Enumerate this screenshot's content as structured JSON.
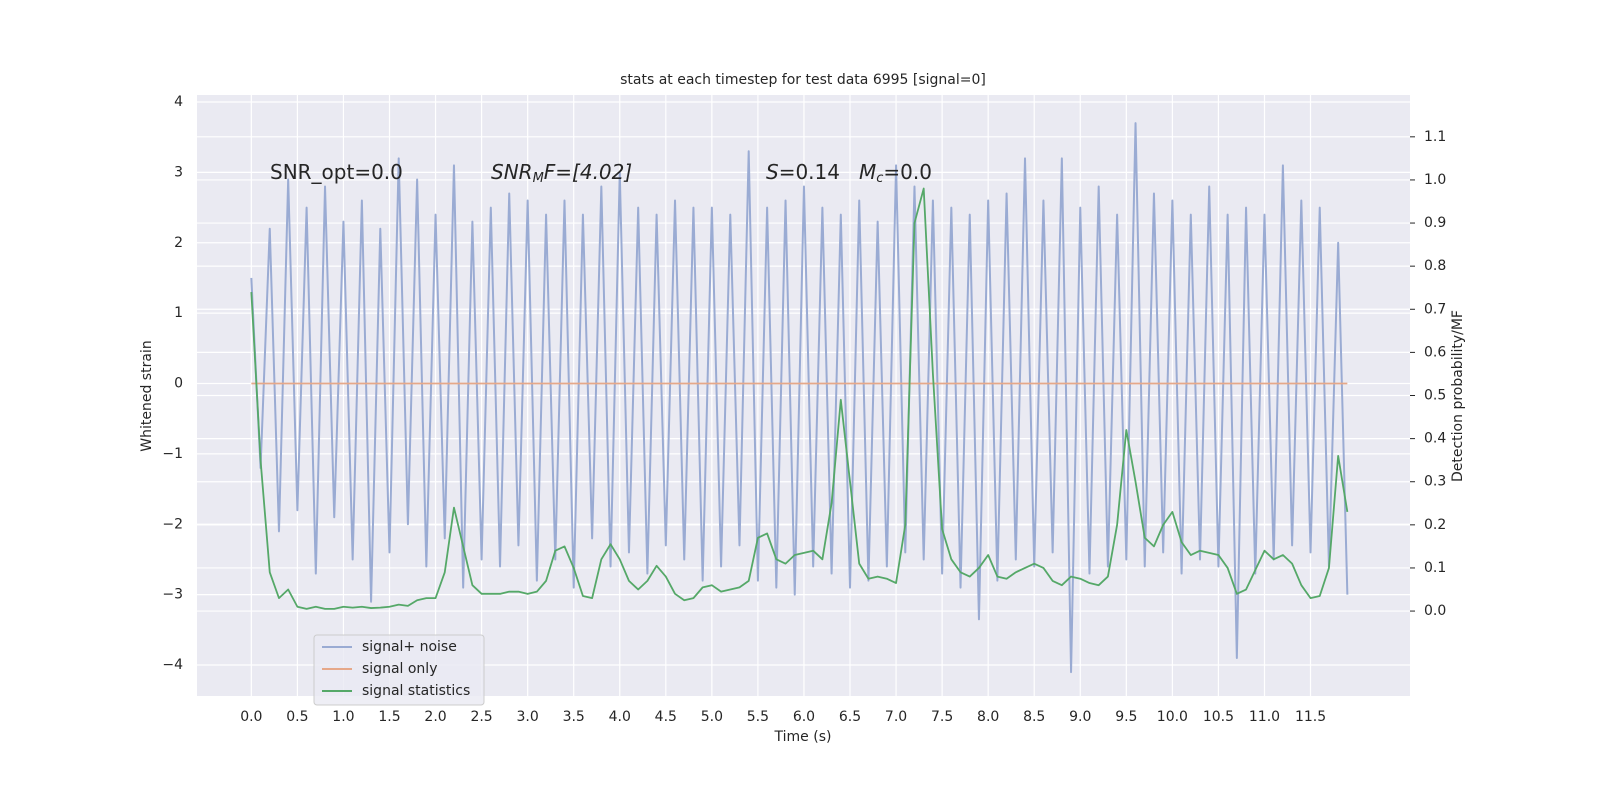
{
  "chart_data": {
    "type": "line",
    "title": "stats at each timestep for test data 6995 [signal=0]",
    "xlabel": "Time (s)",
    "ylabel": "Whitened strain",
    "y2label": "Detection probability/MF",
    "annotations": [
      [
        "SNR_opt=0.0"
      ],
      [
        "SNR",
        "M",
        "F=[4.02]"
      ],
      [
        "S",
        "=0.14"
      ],
      [
        "M",
        "c",
        "=0.0"
      ]
    ],
    "x": [
      0,
      0.1,
      0.2,
      0.3,
      0.4,
      0.5,
      0.6,
      0.7,
      0.8,
      0.9,
      1,
      1.1,
      1.2,
      1.3,
      1.4,
      1.5,
      1.6,
      1.7,
      1.8,
      1.9,
      2,
      2.1,
      2.2,
      2.3,
      2.4,
      2.5,
      2.6,
      2.7,
      2.8,
      2.9,
      3,
      3.1,
      3.2,
      3.3,
      3.4,
      3.5,
      3.6,
      3.7,
      3.8,
      3.9,
      4,
      4.1,
      4.2,
      4.3,
      4.4,
      4.5,
      4.6,
      4.7,
      4.8,
      4.9,
      5,
      5.1,
      5.2,
      5.3,
      5.4,
      5.5,
      5.6,
      5.7,
      5.8,
      5.9,
      6,
      6.1,
      6.2,
      6.3,
      6.4,
      6.5,
      6.6,
      6.7,
      6.8,
      6.9,
      7,
      7.1,
      7.2,
      7.3,
      7.4,
      7.5,
      7.6,
      7.7,
      7.8,
      7.9,
      8,
      8.1,
      8.2,
      8.3,
      8.4,
      8.5,
      8.6,
      8.7,
      8.8,
      8.9,
      9,
      9.1,
      9.2,
      9.3,
      9.4,
      9.5,
      9.6,
      9.7,
      9.8,
      9.9,
      10,
      10.1,
      10.2,
      10.3,
      10.4,
      10.5,
      10.6,
      10.7,
      10.8,
      10.9,
      11,
      11.1,
      11.2,
      11.3,
      11.4,
      11.5,
      11.6,
      11.7,
      11.8,
      11.9
    ],
    "series": [
      {
        "name": "signal+ noise",
        "color": "#9aabd3",
        "values": [
          1.5,
          -1.2,
          2.2,
          -2.1,
          2.9,
          -1.8,
          2.5,
          -2.7,
          2.8,
          -1.9,
          2.3,
          -2.5,
          2.6,
          -3.1,
          2.2,
          -2.4,
          3.2,
          -2.0,
          2.9,
          -2.6,
          2.4,
          -2.2,
          3.1,
          -2.9,
          2.3,
          -2.5,
          2.5,
          -2.6,
          2.7,
          -2.3,
          2.6,
          -2.8,
          2.4,
          -2.5,
          2.6,
          -2.9,
          2.4,
          -2.2,
          2.8,
          -2.6,
          3.0,
          -2.4,
          2.5,
          -2.7,
          2.4,
          -2.3,
          2.6,
          -2.5,
          2.5,
          -2.8,
          2.5,
          -2.6,
          2.4,
          -2.3,
          3.3,
          -2.8,
          2.5,
          -2.9,
          2.6,
          -3.0,
          2.8,
          -2.6,
          2.5,
          -2.7,
          2.4,
          -2.9,
          2.6,
          -2.8,
          2.3,
          -2.6,
          3.1,
          -2.4,
          2.8,
          -2.5,
          2.6,
          -2.7,
          2.5,
          -2.9,
          2.4,
          -3.35,
          2.6,
          -2.8,
          2.7,
          -2.5,
          3.2,
          -2.6,
          2.6,
          -2.4,
          3.2,
          -4.1,
          2.5,
          -2.7,
          2.8,
          -2.6,
          2.4,
          -2.5,
          3.7,
          -2.6,
          2.7,
          -2.4,
          2.6,
          -2.7,
          2.4,
          -2.5,
          2.8,
          -2.6,
          2.4,
          -3.9,
          2.5,
          -2.7,
          2.4,
          -2.5,
          3.1,
          -2.3,
          2.6,
          -2.4,
          2.5,
          -2.6,
          2.0,
          -3.0
        ]
      },
      {
        "name": "signal only",
        "color": "#e6a889",
        "values": [
          0,
          0,
          0,
          0,
          0,
          0,
          0,
          0,
          0,
          0,
          0,
          0,
          0,
          0,
          0,
          0,
          0,
          0,
          0,
          0,
          0,
          0,
          0,
          0,
          0,
          0,
          0,
          0,
          0,
          0,
          0,
          0,
          0,
          0,
          0,
          0,
          0,
          0,
          0,
          0,
          0,
          0,
          0,
          0,
          0,
          0,
          0,
          0,
          0,
          0,
          0,
          0,
          0,
          0,
          0,
          0,
          0,
          0,
          0,
          0,
          0,
          0,
          0,
          0,
          0,
          0,
          0,
          0,
          0,
          0,
          0,
          0,
          0,
          0,
          0,
          0,
          0,
          0,
          0,
          0,
          0,
          0,
          0,
          0,
          0,
          0,
          0,
          0,
          0,
          0,
          0,
          0,
          0,
          0,
          0,
          0,
          0,
          0,
          0,
          0,
          0,
          0,
          0,
          0,
          0,
          0,
          0,
          0,
          0,
          0,
          0,
          0,
          0,
          0,
          0,
          0,
          0,
          0,
          0,
          0
        ]
      },
      {
        "name": "signal statistics",
        "color": "#55a868",
        "axis": "y2",
        "values": [
          0.74,
          0.35,
          0.09,
          0.03,
          0.05,
          0.01,
          0.005,
          0.01,
          0.005,
          0.005,
          0.01,
          0.008,
          0.01,
          0.007,
          0.008,
          0.01,
          0.015,
          0.012,
          0.025,
          0.03,
          0.03,
          0.09,
          0.24,
          0.15,
          0.06,
          0.04,
          0.04,
          0.04,
          0.045,
          0.045,
          0.04,
          0.045,
          0.07,
          0.14,
          0.15,
          0.1,
          0.035,
          0.03,
          0.12,
          0.155,
          0.12,
          0.07,
          0.05,
          0.07,
          0.105,
          0.08,
          0.04,
          0.025,
          0.03,
          0.055,
          0.06,
          0.045,
          0.05,
          0.055,
          0.07,
          0.17,
          0.18,
          0.12,
          0.11,
          0.13,
          0.135,
          0.14,
          0.12,
          0.25,
          0.49,
          0.3,
          0.11,
          0.075,
          0.08,
          0.075,
          0.065,
          0.2,
          0.9,
          0.98,
          0.55,
          0.19,
          0.12,
          0.09,
          0.08,
          0.1,
          0.13,
          0.08,
          0.075,
          0.09,
          0.1,
          0.11,
          0.1,
          0.07,
          0.06,
          0.08,
          0.075,
          0.065,
          0.06,
          0.08,
          0.2,
          0.42,
          0.3,
          0.17,
          0.15,
          0.2,
          0.23,
          0.16,
          0.13,
          0.14,
          0.135,
          0.13,
          0.1,
          0.04,
          0.05,
          0.095,
          0.14,
          0.12,
          0.13,
          0.11,
          0.06,
          0.03,
          0.035,
          0.1,
          0.36,
          0.23
        ]
      }
    ],
    "xlim": [
      -0.59,
      12.58
    ],
    "ylim": [
      -4.44,
      4.1
    ],
    "y2lim": [
      -0.197,
      1.197
    ],
    "xticks": [
      {
        "value": 0,
        "label": "0.0"
      },
      {
        "value": 0.5,
        "label": "0.5"
      },
      {
        "value": 1,
        "label": "1.0"
      },
      {
        "value": 1.5,
        "label": "1.5"
      },
      {
        "value": 2,
        "label": "2.0"
      },
      {
        "value": 2.5,
        "label": "2.5"
      },
      {
        "value": 3,
        "label": "3.0"
      },
      {
        "value": 3.5,
        "label": "3.5"
      },
      {
        "value": 4,
        "label": "4.0"
      },
      {
        "value": 4.5,
        "label": "4.5"
      },
      {
        "value": 5,
        "label": "5.0"
      },
      {
        "value": 5.5,
        "label": "5.5"
      },
      {
        "value": 6,
        "label": "6.0"
      },
      {
        "value": 6.5,
        "label": "6.5"
      },
      {
        "value": 7,
        "label": "7.0"
      },
      {
        "value": 7.5,
        "label": "7.5"
      },
      {
        "value": 8,
        "label": "8.0"
      },
      {
        "value": 8.5,
        "label": "8.5"
      },
      {
        "value": 9,
        "label": "9.0"
      },
      {
        "value": 9.5,
        "label": "9.5"
      },
      {
        "value": 10,
        "label": "10.0"
      },
      {
        "value": 10.5,
        "label": "10.5"
      },
      {
        "value": 11,
        "label": "11.0"
      },
      {
        "value": 11.5,
        "label": "11.5"
      }
    ],
    "yticks": [
      {
        "value": -4,
        "label": "−4"
      },
      {
        "value": -3,
        "label": "−3"
      },
      {
        "value": -2,
        "label": "−2"
      },
      {
        "value": -1,
        "label": "−1"
      },
      0,
      1,
      2,
      3,
      4
    ],
    "y2ticks": [
      {
        "value": 0,
        "label": "0.0"
      },
      {
        "value": 0.1,
        "label": "0.1"
      },
      {
        "value": 0.2,
        "label": "0.2"
      },
      {
        "value": 0.3,
        "label": "0.3"
      },
      {
        "value": 0.4,
        "label": "0.4"
      },
      {
        "value": 0.5,
        "label": "0.5"
      },
      {
        "value": 0.6,
        "label": "0.6"
      },
      {
        "value": 0.7,
        "label": "0.7"
      },
      {
        "value": 0.8,
        "label": "0.8"
      },
      {
        "value": 0.9,
        "label": "0.9"
      },
      {
        "value": 1,
        "label": "1.0"
      },
      {
        "value": 1.1,
        "label": "1.1"
      }
    ],
    "grid": true,
    "legend": "lower left"
  }
}
